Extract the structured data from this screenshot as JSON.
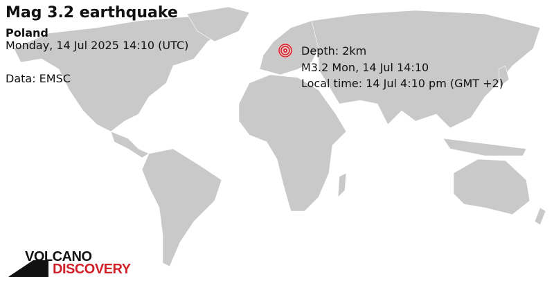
{
  "header": {
    "title": "Mag 3.2 earthquake",
    "region": "Poland",
    "datetime": "Monday, 14 Jul 2025 14:10 (UTC)",
    "source": "Data: EMSC"
  },
  "marker": {
    "icon": "epicenter-rings-icon",
    "color": "#d0202a",
    "depth": "Depth: 2km",
    "summary": "M3.2 Mon, 14 Jul 14:10",
    "local_time": "Local time: 14 Jul 4:10 pm (GMT +2)"
  },
  "map": {
    "land_color": "#c9c9c9",
    "ocean_color": "#ffffff"
  },
  "logo": {
    "line1": "VOLCANO",
    "line2": "DISCOVERY"
  }
}
